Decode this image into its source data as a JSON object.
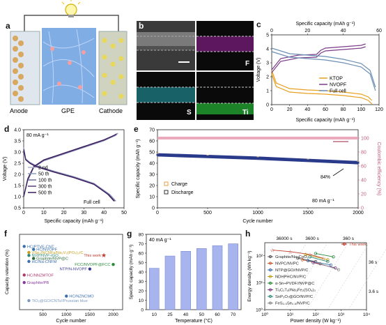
{
  "panels": {
    "a": {
      "label": "a",
      "anode": "Anode",
      "gpe": "GPE",
      "cathode": "Cathode"
    },
    "b": {
      "label": "b",
      "maps": [
        "F",
        "S",
        "Ti"
      ]
    },
    "c": {
      "label": "c",
      "xlabel_bottom": "Specific capacity (mAh g⁻¹)",
      "xlabel_top": "Specific capacity (mAh g⁻¹)",
      "ylabel": "Voltage (V)",
      "legend": [
        "KTOP",
        "NVOPF",
        "Full cell"
      ],
      "colors": {
        "KTOP": "#e8a020",
        "NVOPF": "#7a3c88",
        "Full cell": "#6b8fb5"
      },
      "xticks_bottom": [
        "0",
        "20",
        "40",
        "60",
        "80",
        "100",
        "120"
      ],
      "xticks_top": [
        "0",
        "20",
        "40",
        "60"
      ],
      "yticks": [
        "0",
        "1",
        "2",
        "3",
        "4",
        "5"
      ]
    },
    "d": {
      "label": "d",
      "rate": "80 mA g⁻¹",
      "xlabel": "Specific capacity (mAh g⁻¹)",
      "ylabel": "Voltage (V)",
      "legend": [
        "2 nd",
        "50 th",
        "100 th",
        "300 th",
        "500 th"
      ],
      "note": "Full cell",
      "xticks": [
        "0",
        "10",
        "20",
        "30",
        "40",
        "50"
      ],
      "yticks": [
        "0.5",
        "1.0",
        "1.5",
        "2.0",
        "2.5",
        "3.0",
        "3.5",
        "4.0"
      ]
    },
    "e": {
      "label": "e",
      "xlabel": "Cycle number",
      "ylabel_left": "Specific capacity (mAh g⁻¹)",
      "ylabel_right": "Coulombic efficiency (%)",
      "legend": [
        "Charge",
        "Discharge"
      ],
      "rate": "80 mA g⁻¹",
      "retention": "84%",
      "xticks": [
        "0",
        "500",
        "1000",
        "1500",
        "2000"
      ],
      "yticks_left": [
        "0",
        "10",
        "20",
        "30",
        "40",
        "50",
        "60",
        "70"
      ],
      "yticks_right": [
        "0",
        "20",
        "40",
        "60",
        "80",
        "100"
      ]
    },
    "f": {
      "label": "f",
      "xlabel": "Cycle number",
      "ylabel": "Capacity retention (%)",
      "xticks": [
        "500",
        "1000",
        "1500",
        "2000"
      ],
      "entries": [
        {
          "text": "HC/PTVE-CNT",
          "color": "#3a6fb0"
        },
        {
          "text": "HC/NVOPF",
          "color": "#3a6fb0"
        },
        {
          "text": "VSe₂/NCNFs/Na₃V₂(PO₄)₃/C",
          "color": "#c8a020"
        },
        {
          "text": "NVP/NVP-rGO",
          "color": "#2a8a7a"
        },
        {
          "text": "Graphite/NVP@C",
          "color": "#2a6a3a"
        },
        {
          "text": "HC/Na-CNFM",
          "color": "#3a6fb0"
        },
        {
          "text": "FCC/NVOPF@FCC",
          "color": "#2a8a3a"
        },
        {
          "text": "NTP/N-NVOPF",
          "color": "#3a3a9a"
        },
        {
          "text": "HC/NNZMTOF",
          "color": "#b03a6a"
        },
        {
          "text": "Graphite/PB",
          "color": "#8a3aa0"
        },
        {
          "text": "HC/NZNCMO",
          "color": "#3a6fb0"
        },
        {
          "text": "TiO₂@GO/CNTs//Prussian blue",
          "color": "#7a9ac0"
        },
        {
          "text": "This work",
          "color": "#c0392b"
        }
      ]
    },
    "g": {
      "label": "g",
      "rate": "40 mA g⁻¹",
      "xlabel": "Temperature (°C)",
      "ylabel": "Specific capacity (mAh g⁻¹)",
      "yticks": [
        "0",
        "10",
        "20",
        "30",
        "40",
        "50",
        "60",
        "70",
        "80"
      ]
    },
    "h": {
      "label": "h",
      "xlabel": "Power density (W kg⁻¹)",
      "ylabel": "Energy density (Wh kg⁻¹)",
      "top_times": [
        "36000 s",
        "3600 s",
        "360 s"
      ],
      "right_times": [
        "36 s",
        "3.6 s"
      ],
      "xticks": [
        "10⁰",
        "10¹",
        "10²",
        "10³",
        "10⁴"
      ],
      "yticks": [
        "10⁰",
        "10¹",
        "10²"
      ],
      "legend": [
        {
          "text": "This work",
          "color": "#c0392b"
        },
        {
          "text": "Graphite/Na₃CoO₂",
          "color": "#555555"
        },
        {
          "text": "NVPC/NVPC",
          "color": "#c06030"
        },
        {
          "text": "NTP@GO//NVP/C",
          "color": "#3a6fb0"
        },
        {
          "text": "NDHPHC/NVP/C",
          "color": "#c0a020"
        },
        {
          "text": "α-Sn+PVDF//NVP@C",
          "color": "#2a8a3a"
        },
        {
          "text": "Ti₃C₂Tₓ//Na₃Fe₂(SO₄)₃",
          "color": "#7a3c88"
        },
        {
          "text": "SnP₃O₇@GO/NVP/C",
          "color": "#2a8a7a"
        },
        {
          "text": "FeS₂.₅Se₀.₅/NVP/C",
          "color": "#8a8a8a"
        }
      ]
    }
  },
  "chart_data": [
    {
      "type": "line",
      "panel": "c",
      "xlabel": "Specific capacity (mAh g⁻¹)",
      "ylabel": "Voltage (V)",
      "xlim": [
        0,
        120
      ],
      "ylim": [
        0,
        5
      ],
      "series": [
        {
          "name": "KTOP",
          "x": [
            0,
            5,
            20,
            40,
            60,
            80,
            100,
            108,
            112
          ],
          "y": [
            2.2,
            1.3,
            0.9,
            0.8,
            0.75,
            0.65,
            0.5,
            0.3,
            0.05
          ]
        },
        {
          "name": "NVOPF",
          "x": [
            0,
            10,
            30,
            50,
            55,
            60,
            80,
            100,
            105
          ],
          "y": [
            2.5,
            3.3,
            3.55,
            3.6,
            3.9,
            4.05,
            4.15,
            4.25,
            4.35
          ]
        },
        {
          "name": "Full cell",
          "x": [
            0,
            10,
            20,
            30,
            40,
            50,
            55,
            58
          ],
          "y": [
            3.8,
            3.4,
            3.3,
            3.2,
            3.0,
            2.7,
            2.2,
            1.0
          ]
        }
      ]
    },
    {
      "type": "line",
      "panel": "d",
      "xlabel": "Specific capacity (mAh g⁻¹)",
      "ylabel": "Voltage (V)",
      "xlim": [
        0,
        50
      ],
      "ylim": [
        0.5,
        4.0
      ],
      "series": [
        {
          "name": "2 nd",
          "charge_x": [
            0,
            2,
            5,
            10,
            20,
            30,
            40,
            46,
            47
          ],
          "charge_y": [
            1.0,
            1.7,
            2.3,
            2.6,
            2.9,
            3.2,
            3.5,
            3.75,
            3.85
          ],
          "discharge_x": [
            0,
            1,
            3,
            6,
            15,
            25,
            35,
            43,
            46
          ],
          "discharge_y": [
            3.2,
            2.7,
            2.55,
            2.4,
            2.15,
            1.9,
            1.6,
            1.1,
            0.8
          ]
        },
        {
          "name": "500 th",
          "charge_x": [
            0,
            2,
            5,
            10,
            20,
            30,
            40,
            45,
            46
          ],
          "charge_y": [
            1.0,
            1.8,
            2.35,
            2.65,
            2.95,
            3.25,
            3.55,
            3.75,
            3.8
          ],
          "discharge_x": [
            0,
            1,
            3,
            6,
            15,
            25,
            35,
            42,
            45
          ],
          "discharge_y": [
            3.1,
            2.65,
            2.5,
            2.35,
            2.1,
            1.85,
            1.55,
            1.1,
            0.8
          ]
        }
      ]
    },
    {
      "type": "scatter",
      "panel": "e",
      "xlabel": "Cycle number",
      "ylabel": "Specific capacity (mAh g⁻¹)",
      "xlim": [
        0,
        2000
      ],
      "ylim": [
        0,
        70
      ],
      "series": [
        {
          "name": "Charge",
          "x": [
            0,
            500,
            1000,
            1500,
            2000
          ],
          "y": [
            48,
            46.5,
            45,
            43,
            41
          ]
        },
        {
          "name": "Discharge",
          "x": [
            0,
            500,
            1000,
            1500,
            2000
          ],
          "y": [
            47.5,
            46,
            44.5,
            42.5,
            40.5
          ]
        }
      ],
      "efficiency_pct": [
        100,
        100,
        100,
        100,
        100
      ]
    },
    {
      "type": "scatter",
      "panel": "f",
      "xlabel": "Cycle number",
      "ylabel": "Capacity retention (%)",
      "xlim": [
        0,
        2200
      ],
      "ylim": [
        50,
        100
      ],
      "points": [
        {
          "name": "HC/PTVE-CNT",
          "x": 100,
          "y": 92
        },
        {
          "name": "This work",
          "x": 1800,
          "y": 86
        },
        {
          "name": "HC/NVOPF",
          "x": 300,
          "y": 90
        },
        {
          "name": "VSe₂/NCNFs/Na₃V₂(PO₄)₃/C",
          "x": 200,
          "y": 88
        },
        {
          "name": "NVP/NVP-rGO",
          "x": 200,
          "y": 86
        },
        {
          "name": "Graphite/NVP@C",
          "x": 300,
          "y": 84
        },
        {
          "name": "HC/Na-CNFM",
          "x": 200,
          "y": 82
        },
        {
          "name": "FCC/NVOPF@FCC",
          "x": 2000,
          "y": 80
        },
        {
          "name": "NTP/N-NVOPF",
          "x": 1500,
          "y": 77
        },
        {
          "name": "HC/NNZMTOF",
          "x": 100,
          "y": 73
        },
        {
          "name": "Graphite/PB",
          "x": 100,
          "y": 68
        },
        {
          "name": "HC/NZNCMO",
          "x": 1000,
          "y": 59
        },
        {
          "name": "TiO₂@GO/CNTs//Prussian blue",
          "x": 200,
          "y": 56
        }
      ]
    },
    {
      "type": "bar",
      "panel": "g",
      "xlabel": "Temperature (°C)",
      "ylabel": "Specific capacity (mAh g⁻¹)",
      "categories": [
        "10",
        "25",
        "40",
        "50",
        "60",
        "70"
      ],
      "values": [
        44,
        57,
        62,
        65,
        68,
        70
      ],
      "ylim": [
        0,
        80
      ]
    },
    {
      "type": "scatter",
      "panel": "h",
      "xlabel": "Power density (W kg⁻¹)",
      "ylabel": "Energy density (Wh kg⁻¹)",
      "xscale": "log",
      "yscale": "log",
      "xlim": [
        1,
        10000
      ],
      "ylim": [
        1,
        300
      ],
      "series": [
        {
          "name": "This work",
          "x": [
            2,
            10,
            60,
            200
          ],
          "y": [
            160,
            140,
            110,
            80
          ]
        },
        {
          "name": "Graphite/Na₃CoO₂",
          "x": [
            20,
            100
          ],
          "y": [
            80,
            60
          ]
        },
        {
          "name": "NVPC/NVPC",
          "x": [
            30,
            150
          ],
          "y": [
            70,
            50
          ]
        },
        {
          "name": "NTP@GO//NVP/C",
          "x": [
            50,
            400
          ],
          "y": [
            65,
            45
          ]
        },
        {
          "name": "NDHPHC/NVP/C",
          "x": [
            40,
            300
          ],
          "y": [
            110,
            70
          ]
        },
        {
          "name": "α-Sn+PVDF//NVP@C",
          "x": [
            100,
            500
          ],
          "y": [
            120,
            90
          ]
        },
        {
          "name": "Ti₃C₂Tₓ//Na₃Fe₂(SO₄)₃",
          "x": [
            80,
            600
          ],
          "y": [
            55,
            35
          ]
        },
        {
          "name": "SnP₃O₇@GO/NVP/C",
          "x": [
            60,
            300
          ],
          "y": [
            90,
            60
          ]
        },
        {
          "name": "FeS₂.₅Se₀.₅/NVP/C",
          "x": [
            150,
            800
          ],
          "y": [
            50,
            30
          ]
        }
      ]
    }
  ]
}
